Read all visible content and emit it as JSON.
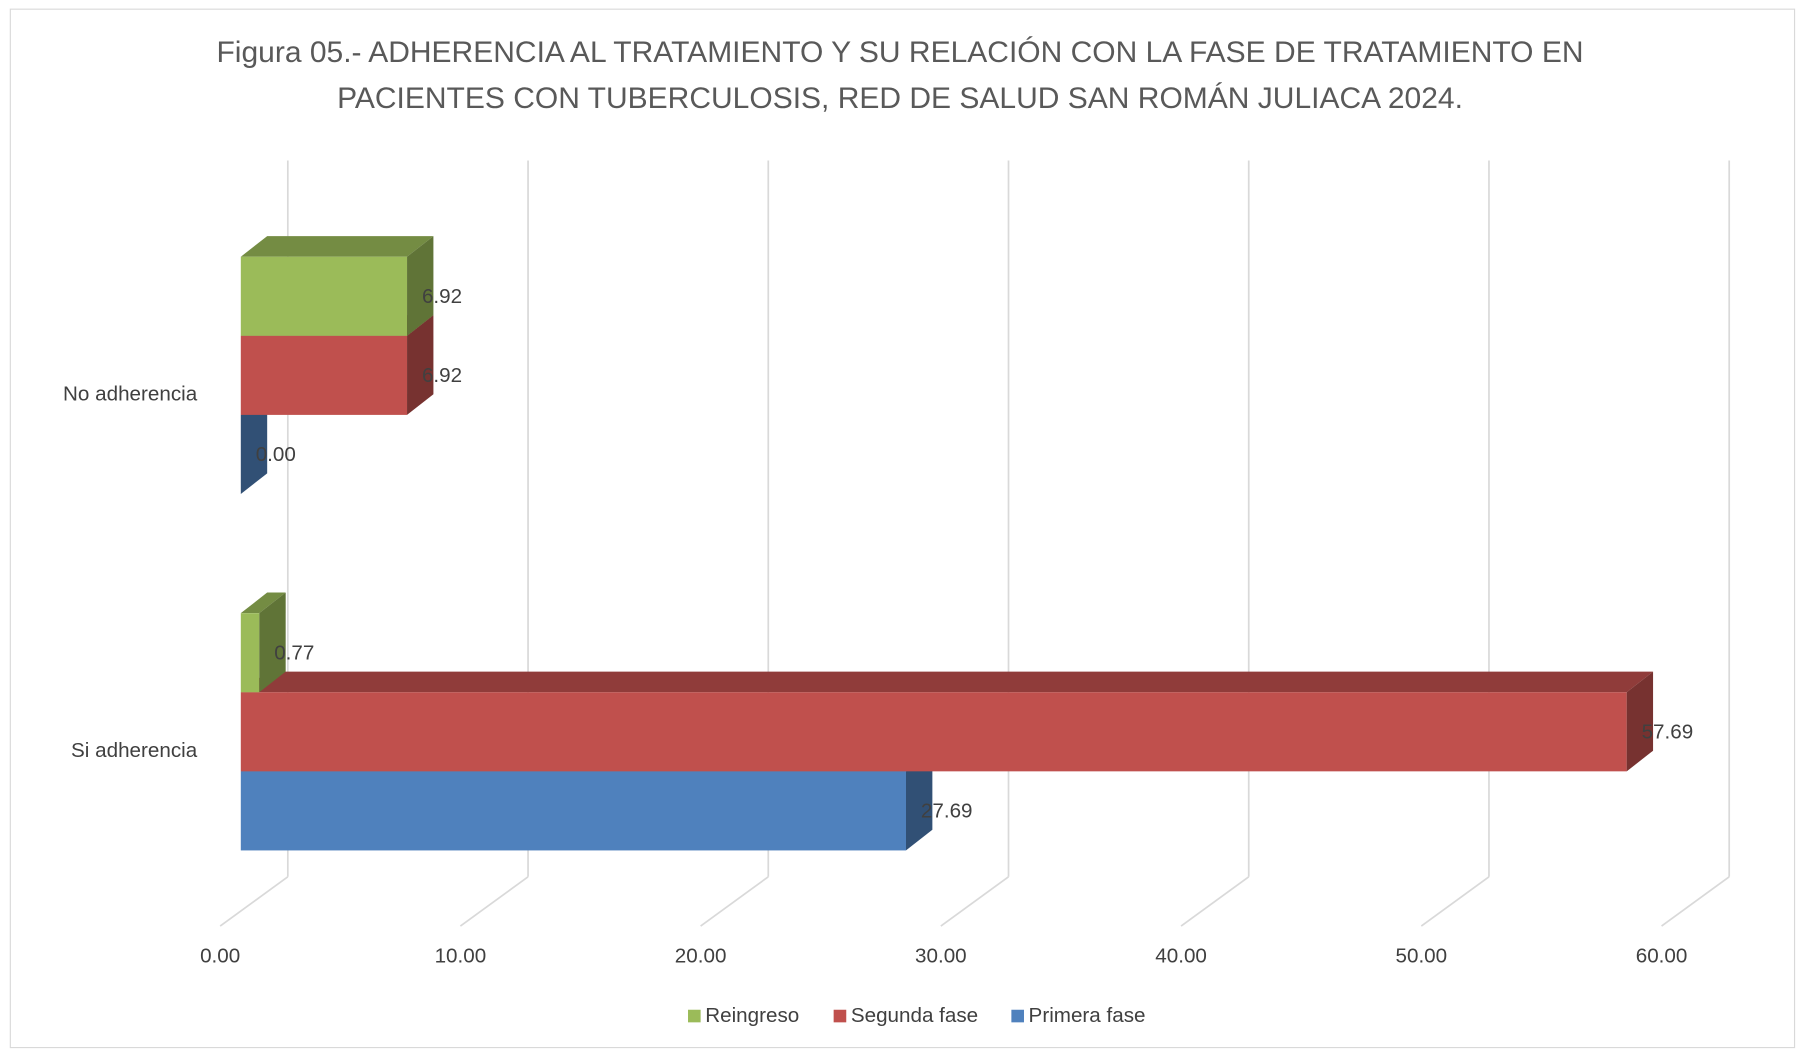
{
  "chart_data": {
    "type": "bar3d_horizontal",
    "title": "Figura 05.- ADHERENCIA AL TRATAMIENTO Y SU RELACIÓN CON LA FASE DE TRATAMIENTO EN PACIENTES CON TUBERCULOSIS, RED DE SALUD SAN ROMÁN JULIACA 2024.",
    "categories": [
      "No adherencia",
      "Si adherencia"
    ],
    "series": [
      {
        "name": "Reingreso",
        "color": "#9bbb59",
        "values": [
          6.92,
          0.77
        ],
        "value_labels": [
          "6.92",
          "0.77"
        ]
      },
      {
        "name": "Segunda fase",
        "color": "#c0504d",
        "values": [
          6.92,
          57.69
        ],
        "value_labels": [
          "6.92",
          "57.69"
        ]
      },
      {
        "name": "Primera fase",
        "color": "#4f81bd",
        "values": [
          0,
          27.69
        ],
        "value_labels": [
          "0.00",
          "27.69"
        ]
      }
    ],
    "xlim": [
      0,
      60
    ],
    "xticks": [
      {
        "value": 0,
        "label": "0.00"
      },
      {
        "value": 10,
        "label": "10.00"
      },
      {
        "value": 20,
        "label": "20.00"
      },
      {
        "value": 30,
        "label": "30.00"
      },
      {
        "value": 40,
        "label": "40.00"
      },
      {
        "value": 50,
        "label": "50.00"
      },
      {
        "value": 60,
        "label": "60.00"
      }
    ],
    "grid": true,
    "legend": "bottom"
  }
}
